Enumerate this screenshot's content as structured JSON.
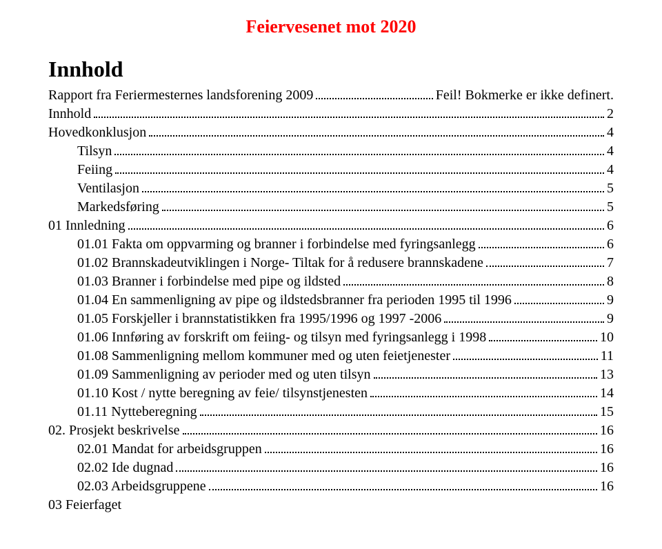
{
  "doc_title": "Feiervesenet mot 2020",
  "doc_title_color": "#ff0000",
  "doc_title_fontsize": 26,
  "section_title": "Innhold",
  "section_title_fontsize": 32,
  "body_fontsize": 20,
  "text_color": "#000000",
  "background_color": "#ffffff",
  "toc": [
    {
      "label": "Rapport fra Feriermesternes landsforening 2009",
      "page": "Feil! Bokmerke er ikke definert.",
      "indent": 0
    },
    {
      "label": "Innhold",
      "page": "2",
      "indent": 0
    },
    {
      "label": "Hovedkonklusjon",
      "page": "4",
      "indent": 0
    },
    {
      "label": "Tilsyn",
      "page": "4",
      "indent": 1
    },
    {
      "label": "Feiing",
      "page": "4",
      "indent": 1
    },
    {
      "label": "Ventilasjon",
      "page": "5",
      "indent": 1
    },
    {
      "label": "Markedsføring",
      "page": "5",
      "indent": 1
    },
    {
      "label": "01 Innledning",
      "page": "6",
      "indent": 0
    },
    {
      "label": "01.01 Fakta om oppvarming og branner i forbindelse med fyringsanlegg",
      "page": "6",
      "indent": 1
    },
    {
      "label": "01.02 Brannskadeutviklingen i Norge- Tiltak for å redusere brannskadene",
      "page": "7",
      "indent": 1
    },
    {
      "label": "01.03 Branner i forbindelse med pipe og ildsted",
      "page": "8",
      "indent": 1
    },
    {
      "label": "01.04 En sammenligning av pipe og ildstedsbranner fra perioden 1995 til 1996",
      "page": "9",
      "indent": 1
    },
    {
      "label": "01.05 Forskjeller i brannstatistikken fra 1995/1996 og 1997 -2006",
      "page": "9",
      "indent": 1
    },
    {
      "label": "01.06 Innføring av forskrift om feiing- og tilsyn med fyringsanlegg i 1998",
      "page": "10",
      "indent": 1
    },
    {
      "label": "01.08 Sammenligning mellom kommuner med og uten feietjenester",
      "page": "11",
      "indent": 1
    },
    {
      "label": "01.09 Sammenligning av perioder med og uten tilsyn",
      "page": "13",
      "indent": 1
    },
    {
      "label": "01.10 Kost / nytte beregning av feie/ tilsynstjenesten",
      "page": "14",
      "indent": 1
    },
    {
      "label": "01.11 Nytteberegning",
      "page": "15",
      "indent": 1
    },
    {
      "label": "02. Prosjekt beskrivelse",
      "page": "16",
      "indent": 0
    },
    {
      "label": "02.01 Mandat for arbeidsgruppen",
      "page": "16",
      "indent": 1
    },
    {
      "label": "02.02 Ide dugnad",
      "page": "16",
      "indent": 1
    },
    {
      "label": "02.03 Arbeidsgruppene",
      "page": "16",
      "indent": 1
    },
    {
      "label": "03 Feierfaget",
      "page": "",
      "indent": 0,
      "no_page": true
    }
  ]
}
